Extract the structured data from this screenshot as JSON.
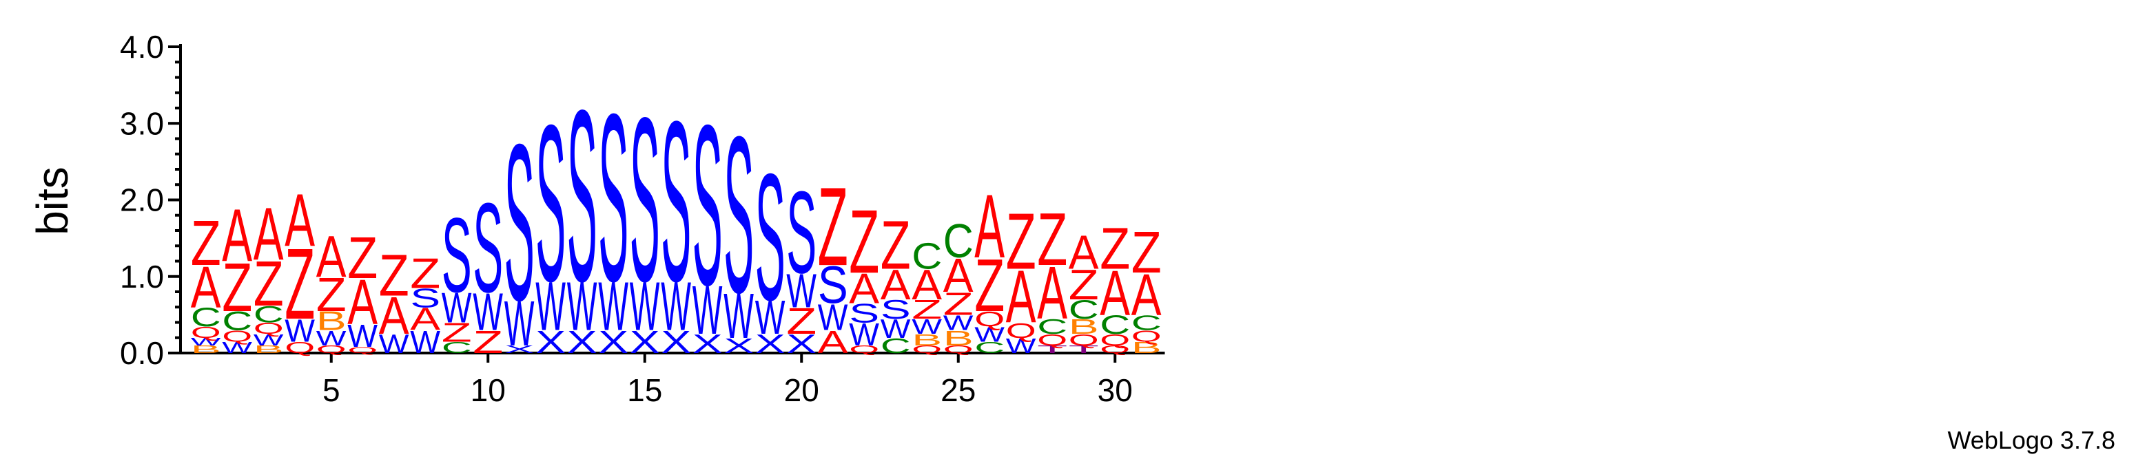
{
  "chart_data": {
    "type": "sequence-logo",
    "ylabel": "bits",
    "ylim": [
      0,
      4.0
    ],
    "yticks": [
      "0.0",
      "1.0",
      "2.0",
      "3.0",
      "4.0"
    ],
    "xticks": [
      5,
      10,
      15,
      20,
      25,
      30
    ],
    "credit": "WebLogo 3.7.8",
    "colors": {
      "Z": "#ff0000",
      "A": "#ff0000",
      "S": "#0000ff",
      "W": "#0000ff",
      "X": "#0000ff",
      "C": "#008000",
      "B": "#ff8000",
      "Q": "#ff0000",
      "T": "#800080"
    },
    "positions": [
      {
        "pos": 1,
        "stack": [
          [
            "B",
            0.1
          ],
          [
            "W",
            0.1
          ],
          [
            "Q",
            0.15
          ],
          [
            "C",
            0.25
          ],
          [
            "A",
            0.55
          ],
          [
            "Z",
            0.6
          ]
        ]
      },
      {
        "pos": 2,
        "stack": [
          [
            "W",
            0.15
          ],
          [
            "Q",
            0.15
          ],
          [
            "C",
            0.25
          ],
          [
            "Z",
            0.65
          ],
          [
            "A",
            0.7
          ]
        ]
      },
      {
        "pos": 3,
        "stack": [
          [
            "B",
            0.1
          ],
          [
            "W",
            0.15
          ],
          [
            "Q",
            0.15
          ],
          [
            "C",
            0.22
          ],
          [
            "Z",
            0.6
          ],
          [
            "A",
            0.7
          ]
        ]
      },
      {
        "pos": 4,
        "stack": [
          [
            "Q",
            0.15
          ],
          [
            "W",
            0.3
          ],
          [
            "Z",
            0.95
          ],
          [
            "A",
            0.7
          ]
        ]
      },
      {
        "pos": 5,
        "stack": [
          [
            "Q",
            0.1
          ],
          [
            "W",
            0.2
          ],
          [
            "B",
            0.25
          ],
          [
            "Z",
            0.45
          ],
          [
            "A",
            0.55
          ]
        ]
      },
      {
        "pos": 6,
        "stack": [
          [
            "Q",
            0.08
          ],
          [
            "W",
            0.3
          ],
          [
            "A",
            0.6
          ],
          [
            "Z",
            0.55
          ]
        ]
      },
      {
        "pos": 7,
        "stack": [
          [
            "W",
            0.25
          ],
          [
            "A",
            0.5
          ],
          [
            "Z",
            0.55
          ]
        ]
      },
      {
        "pos": 8,
        "stack": [
          [
            "W",
            0.3
          ],
          [
            "A",
            0.3
          ],
          [
            "S",
            0.25
          ],
          [
            "Z",
            0.4
          ]
        ]
      },
      {
        "pos": 9,
        "stack": [
          [
            "C",
            0.15
          ],
          [
            "Z",
            0.25
          ],
          [
            "W",
            0.4
          ],
          [
            "S",
            1.0
          ]
        ]
      },
      {
        "pos": 10,
        "stack": [
          [
            "Z",
            0.3
          ],
          [
            "W",
            0.5
          ],
          [
            "S",
            1.2
          ]
        ]
      },
      {
        "pos": 11,
        "stack": [
          [
            "X",
            0.1
          ],
          [
            "W",
            0.6
          ],
          [
            "S",
            2.1
          ]
        ]
      },
      {
        "pos": 12,
        "stack": [
          [
            "X",
            0.3
          ],
          [
            "W",
            0.65
          ],
          [
            "S",
            2.1
          ]
        ]
      },
      {
        "pos": 13,
        "stack": [
          [
            "X",
            0.3
          ],
          [
            "W",
            0.65
          ],
          [
            "S",
            2.3
          ]
        ]
      },
      {
        "pos": 14,
        "stack": [
          [
            "X",
            0.3
          ],
          [
            "W",
            0.65
          ],
          [
            "S",
            2.25
          ]
        ]
      },
      {
        "pos": 15,
        "stack": [
          [
            "X",
            0.3
          ],
          [
            "W",
            0.65
          ],
          [
            "S",
            2.2
          ]
        ]
      },
      {
        "pos": 16,
        "stack": [
          [
            "X",
            0.3
          ],
          [
            "W",
            0.65
          ],
          [
            "S",
            2.15
          ]
        ]
      },
      {
        "pos": 17,
        "stack": [
          [
            "X",
            0.25
          ],
          [
            "W",
            0.65
          ],
          [
            "S",
            2.15
          ]
        ]
      },
      {
        "pos": 18,
        "stack": [
          [
            "X",
            0.2
          ],
          [
            "W",
            0.6
          ],
          [
            "S",
            2.1
          ]
        ]
      },
      {
        "pos": 19,
        "stack": [
          [
            "X",
            0.25
          ],
          [
            "W",
            0.45
          ],
          [
            "S",
            1.7
          ]
        ]
      },
      {
        "pos": 20,
        "stack": [
          [
            "X",
            0.25
          ],
          [
            "Z",
            0.35
          ],
          [
            "W",
            0.45
          ],
          [
            "S",
            1.1
          ]
        ]
      },
      {
        "pos": 21,
        "stack": [
          [
            "A",
            0.3
          ],
          [
            "W",
            0.35
          ],
          [
            "S",
            0.5
          ],
          [
            "Z",
            1.05
          ]
        ]
      },
      {
        "pos": 22,
        "stack": [
          [
            "Q",
            0.1
          ],
          [
            "W",
            0.3
          ],
          [
            "S",
            0.25
          ],
          [
            "A",
            0.4
          ],
          [
            "Z",
            0.85
          ]
        ]
      },
      {
        "pos": 23,
        "stack": [
          [
            "C",
            0.2
          ],
          [
            "W",
            0.25
          ],
          [
            "S",
            0.25
          ],
          [
            "A",
            0.4
          ],
          [
            "Z",
            0.65
          ]
        ]
      },
      {
        "pos": 24,
        "stack": [
          [
            "Q",
            0.1
          ],
          [
            "B",
            0.15
          ],
          [
            "W",
            0.2
          ],
          [
            "Z",
            0.25
          ],
          [
            "A",
            0.4
          ],
          [
            "C",
            0.35
          ]
        ]
      },
      {
        "pos": 25,
        "stack": [
          [
            "Q",
            0.1
          ],
          [
            "B",
            0.2
          ],
          [
            "W",
            0.2
          ],
          [
            "Z",
            0.3
          ],
          [
            "A",
            0.45
          ],
          [
            "C",
            0.45
          ]
        ]
      },
      {
        "pos": 26,
        "stack": [
          [
            "C",
            0.15
          ],
          [
            "W",
            0.2
          ],
          [
            "Q",
            0.2
          ],
          [
            "Z",
            0.7
          ],
          [
            "A",
            0.85
          ]
        ]
      },
      {
        "pos": 27,
        "stack": [
          [
            "W",
            0.2
          ],
          [
            "Q",
            0.2
          ],
          [
            "A",
            0.7
          ],
          [
            "Z",
            0.75
          ]
        ]
      },
      {
        "pos": 28,
        "stack": [
          [
            "T",
            0.1
          ],
          [
            "Q",
            0.15
          ],
          [
            "C",
            0.2
          ],
          [
            "A",
            0.7
          ],
          [
            "Z",
            0.7
          ]
        ]
      },
      {
        "pos": 29,
        "stack": [
          [
            "T",
            0.1
          ],
          [
            "Q",
            0.15
          ],
          [
            "B",
            0.2
          ],
          [
            "C",
            0.25
          ],
          [
            "Z",
            0.4
          ],
          [
            "A",
            0.45
          ]
        ]
      },
      {
        "pos": 30,
        "stack": [
          [
            "Q",
            0.1
          ],
          [
            "Q",
            0.15
          ],
          [
            "C",
            0.25
          ],
          [
            "A",
            0.6
          ],
          [
            "Z",
            0.55
          ]
        ]
      },
      {
        "pos": 31,
        "stack": [
          [
            "B",
            0.15
          ],
          [
            "Q",
            0.15
          ],
          [
            "C",
            0.2
          ],
          [
            "A",
            0.55
          ],
          [
            "Z",
            0.55
          ]
        ]
      }
    ]
  }
}
